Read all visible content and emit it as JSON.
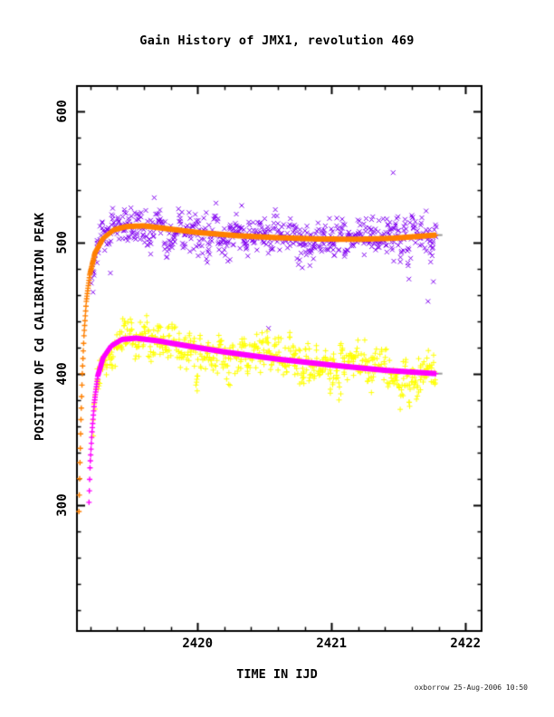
{
  "page": {
    "footer": "oxborrow 25-Aug-2006 10:50"
  },
  "chart_data": {
    "type": "scatter",
    "title": "Gain History of JMX1, revolution 469",
    "xlabel": "TIME IN IJD",
    "ylabel": "POSITION OF Cd CALIBRATION PEAK",
    "xlim": [
      2419.1,
      2422.12
    ],
    "ylim": [
      204,
      619
    ],
    "x_major_ticks": [
      2420,
      2421,
      2422
    ],
    "x_minor_step": 0.2,
    "y_major_ticks": [
      300,
      400,
      500,
      600
    ],
    "y_minor_step": 20,
    "grid": false,
    "legend": "none",
    "frame_color": "#000000",
    "background": "#ffffff",
    "series": [
      {
        "name": "cd-peak-measurements-upper",
        "kind": "scatter",
        "marker": "x",
        "color": "#8000F0",
        "x_range": [
          2419.21,
          2421.78
        ],
        "n_points": 700,
        "noise_sigma": 6.5,
        "cluster_sigma": 5,
        "tail_prob": 0.22,
        "tail_amp": 26,
        "marker_size": 5,
        "seed": 11,
        "trend_ref": 2,
        "outliers": [
          [
            2421.46,
            553
          ],
          [
            2420.53,
            434.5
          ],
          [
            2421.72,
            455
          ],
          [
            2421.74,
            485
          ],
          [
            2419.22,
            462
          ],
          [
            2421.76,
            470
          ]
        ]
      },
      {
        "name": "cd-peak-measurements-lower",
        "kind": "scatter",
        "marker": "+",
        "color": "#FFFF00",
        "x_range": [
          2419.22,
          2421.78
        ],
        "n_points": 700,
        "noise_sigma": 6,
        "cluster_sigma": 5,
        "tail_prob": 0.33,
        "tail_amp": 34,
        "marker_size": 6,
        "seed": 42,
        "trend_ref": 3,
        "outliers": []
      },
      {
        "name": "gain-fit-upper",
        "kind": "curve",
        "marker": "+",
        "color": "#FF8000",
        "marker_size": 6,
        "sample_step_x": 0.0025,
        "end_cap_color": "#999999",
        "points": [
          [
            2419.115,
            295
          ],
          [
            2419.122,
            330
          ],
          [
            2419.13,
            365
          ],
          [
            2419.14,
            400
          ],
          [
            2419.153,
            430
          ],
          [
            2419.17,
            455
          ],
          [
            2419.195,
            475
          ],
          [
            2419.235,
            492
          ],
          [
            2419.295,
            503
          ],
          [
            2419.375,
            509.5
          ],
          [
            2419.47,
            512
          ],
          [
            2419.6,
            512.5
          ],
          [
            2419.8,
            510
          ],
          [
            2420.0,
            507.5
          ],
          [
            2420.3,
            505
          ],
          [
            2420.6,
            503.5
          ],
          [
            2420.9,
            502.5
          ],
          [
            2421.2,
            502.3
          ],
          [
            2421.45,
            503
          ],
          [
            2421.65,
            504.5
          ],
          [
            2421.78,
            505.5
          ]
        ]
      },
      {
        "name": "gain-fit-lower",
        "kind": "curve",
        "marker": "+",
        "color": "#FF00FF",
        "marker_size": 6,
        "sample_step_x": 0.0025,
        "end_cap_color": "#999999",
        "points": [
          [
            2419.19,
            302
          ],
          [
            2419.198,
            330
          ],
          [
            2419.212,
            355
          ],
          [
            2419.23,
            378
          ],
          [
            2419.255,
            398
          ],
          [
            2419.295,
            412
          ],
          [
            2419.355,
            421
          ],
          [
            2419.435,
            426
          ],
          [
            2419.54,
            427
          ],
          [
            2419.7,
            425
          ],
          [
            2419.9,
            421.5
          ],
          [
            2420.2,
            416.5
          ],
          [
            2420.6,
            411
          ],
          [
            2421.0,
            406.5
          ],
          [
            2421.4,
            402.5
          ],
          [
            2421.78,
            400
          ]
        ]
      }
    ]
  }
}
